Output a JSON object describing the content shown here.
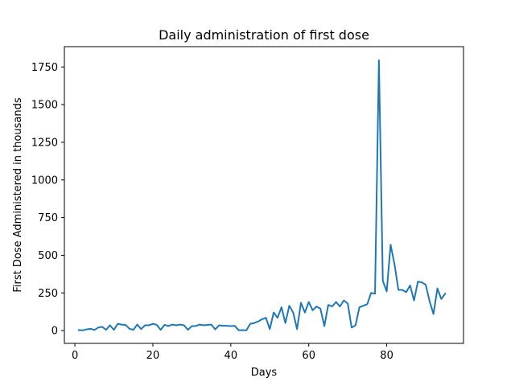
{
  "chart_data": {
    "type": "line",
    "title": "Daily administration of first dose",
    "xlabel": "Days",
    "ylabel": "First Dose Administered in thousands",
    "xlim": [
      -2.7,
      99.7
    ],
    "ylim": [
      -85,
      1885
    ],
    "xticks": [
      0,
      20,
      40,
      60,
      80
    ],
    "yticks": [
      0,
      250,
      500,
      750,
      1000,
      1250,
      1500,
      1750
    ],
    "grid": false,
    "legend": "none",
    "line_color": "#1f77b4",
    "series": [
      {
        "x": [
          1,
          2,
          3,
          4,
          5,
          6,
          7,
          8,
          9,
          10,
          11,
          12,
          13,
          14,
          15,
          16,
          17,
          18,
          19,
          20,
          21,
          22,
          23,
          24,
          25,
          26,
          27,
          28,
          29,
          30,
          31,
          32,
          33,
          34,
          35,
          36,
          37,
          38,
          39,
          40,
          41,
          42,
          43,
          44,
          45,
          46,
          47,
          48,
          49,
          50,
          51,
          52,
          53,
          54,
          55,
          56,
          57,
          58,
          59,
          60,
          61,
          62,
          63,
          64,
          65,
          66,
          67,
          68,
          69,
          70,
          71,
          72,
          73,
          74,
          75,
          76,
          77,
          78,
          79,
          80,
          81,
          82,
          83,
          84,
          85,
          86,
          87,
          88,
          89,
          90,
          91,
          92,
          93,
          94,
          95
        ],
        "values": [
          3,
          2,
          8,
          12,
          4,
          20,
          25,
          5,
          35,
          5,
          45,
          40,
          38,
          12,
          5,
          40,
          10,
          35,
          35,
          45,
          38,
          5,
          38,
          30,
          40,
          35,
          40,
          35,
          5,
          30,
          30,
          40,
          35,
          38,
          40,
          8,
          35,
          32,
          32,
          30,
          32,
          2,
          3,
          2,
          45,
          50,
          60,
          75,
          85,
          10,
          120,
          85,
          155,
          50,
          165,
          120,
          10,
          185,
          120,
          190,
          135,
          160,
          145,
          30,
          170,
          160,
          190,
          160,
          200,
          180,
          20,
          35,
          155,
          165,
          175,
          250,
          245,
          1795,
          330,
          260,
          570,
          440,
          270,
          270,
          255,
          300,
          200,
          325,
          320,
          305,
          195,
          110,
          280,
          210,
          245
        ]
      }
    ]
  }
}
